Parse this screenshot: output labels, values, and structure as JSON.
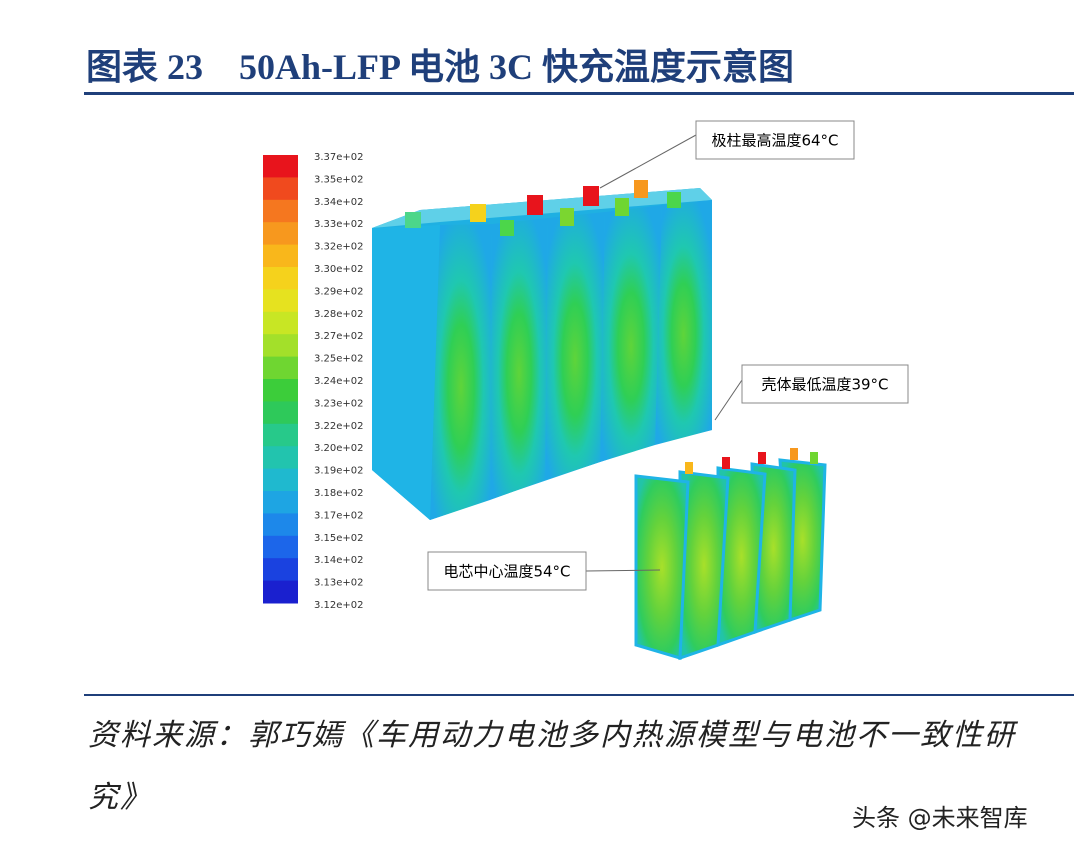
{
  "header": {
    "title": "图表 23　50Ah-LFP 电池 3C 快充温度示意图"
  },
  "colorbar": {
    "labels": [
      "3.37e+02",
      "3.35e+02",
      "3.34e+02",
      "3.33e+02",
      "3.32e+02",
      "3.30e+02",
      "3.29e+02",
      "3.28e+02",
      "3.27e+02",
      "3.25e+02",
      "3.24e+02",
      "3.23e+02",
      "3.22e+02",
      "3.20e+02",
      "3.19e+02",
      "3.18e+02",
      "3.17e+02",
      "3.15e+02",
      "3.14e+02",
      "3.13e+02",
      "3.12e+02"
    ]
  },
  "annotations": [
    "极柱最高温度64°C",
    "壳体最低温度39°C",
    "电芯中心温度54°C"
  ],
  "source": "资料来源：郭巧嫣《车用动力电池多内热源模型与电池不一致性研究》",
  "watermark": "头条 @未来智库"
}
